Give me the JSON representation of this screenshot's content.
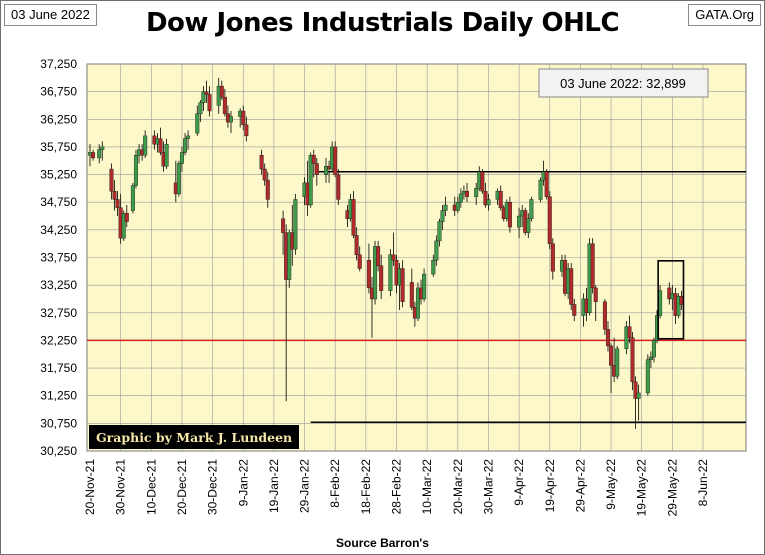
{
  "header": {
    "date_label": "03 June 2022",
    "title": "Dow Jones Industrials Daily OHLC",
    "source_site": "GATA.Org"
  },
  "footer": {
    "source": "Source Barron's"
  },
  "chart_data": {
    "type": "candlestick",
    "title": "Dow Jones Industrials Daily OHLC",
    "xlabel": "Source Barron's",
    "ylim": [
      30250,
      37250
    ],
    "y_ticks": [
      "37,250",
      "36,750",
      "36,250",
      "35,750",
      "35,250",
      "34,750",
      "34,250",
      "33,750",
      "33,250",
      "32,750",
      "32,250",
      "31,750",
      "31,250",
      "30,750",
      "30,250"
    ],
    "x_ticks": [
      "20-Nov-21",
      "30-Nov-21",
      "10-Dec-21",
      "20-Dec-21",
      "30-Dec-21",
      "9-Jan-22",
      "19-Jan-22",
      "29-Jan-22",
      "8-Feb-22",
      "18-Feb-22",
      "28-Feb-22",
      "10-Mar-22",
      "20-Mar-22",
      "30-Mar-22",
      "9-Apr-22",
      "19-Apr-22",
      "29-Apr-22",
      "9-May-22",
      "19-May-22",
      "29-May-22",
      "8-Jun-22"
    ],
    "x_range_days": [
      0,
      200
    ],
    "callout": "03 June 2022:  32,899",
    "credit": "Graphic by Mark J. Lundeen",
    "colors": {
      "up": "#3f9a4a",
      "down": "#b02a2a",
      "plot_bg": "#fcf8c9",
      "red_line": "#d81e1e"
    },
    "reference_lines": [
      {
        "value": 35300,
        "color": "#000000",
        "from_day": 74,
        "to_day": 200
      },
      {
        "value": 32250,
        "color": "#d81e1e",
        "from_day": 0,
        "to_day": 200
      },
      {
        "value": 30770,
        "color": "#000000",
        "from_day": 72,
        "to_day": 200
      }
    ],
    "highlight_box": {
      "day_from": 187,
      "day_to": 192,
      "low": 32280,
      "high": 33690
    },
    "candles": [
      [
        0,
        35600,
        35800,
        35400,
        35650
      ],
      [
        1,
        35650,
        35700,
        35500,
        35550
      ],
      [
        3,
        35550,
        35800,
        35450,
        35700
      ],
      [
        4,
        35700,
        35850,
        35500,
        35750
      ],
      [
        7,
        35350,
        35450,
        34800,
        34950
      ],
      [
        8,
        34950,
        35150,
        34600,
        34800
      ],
      [
        9,
        34800,
        34950,
        34500,
        34650
      ],
      [
        10,
        34650,
        34900,
        34000,
        34100
      ],
      [
        11,
        34100,
        34600,
        34050,
        34550
      ],
      [
        12,
        34550,
        34700,
        34300,
        34400
      ],
      [
        14,
        34600,
        35100,
        34550,
        35050
      ],
      [
        15,
        35050,
        35700,
        35000,
        35600
      ],
      [
        16,
        35600,
        35800,
        35450,
        35700
      ],
      [
        17,
        35700,
        35800,
        35500,
        35600
      ],
      [
        18,
        35600,
        36050,
        35550,
        35950
      ],
      [
        21,
        35950,
        36050,
        35700,
        35800
      ],
      [
        22,
        35800,
        36000,
        35650,
        35900
      ],
      [
        23,
        35900,
        36100,
        35600,
        35650
      ],
      [
        24,
        35650,
        35850,
        35300,
        35400
      ],
      [
        25,
        35400,
        35900,
        35350,
        35800
      ],
      [
        28,
        35100,
        35500,
        34750,
        34900
      ],
      [
        29,
        34900,
        35500,
        34850,
        35450
      ],
      [
        30,
        35450,
        35750,
        35300,
        35650
      ],
      [
        31,
        35650,
        36000,
        35600,
        35900
      ],
      [
        32,
        35900,
        36050,
        35700,
        35950
      ],
      [
        35,
        36000,
        36500,
        35950,
        36350
      ],
      [
        36,
        36350,
        36600,
        36200,
        36550
      ],
      [
        37,
        36550,
        36850,
        36400,
        36750
      ],
      [
        38,
        36750,
        36950,
        36550,
        36700
      ],
      [
        39,
        36700,
        36850,
        36300,
        36400
      ],
      [
        42,
        36500,
        37000,
        36350,
        36850
      ],
      [
        43,
        36850,
        36950,
        36600,
        36650
      ],
      [
        44,
        36650,
        36800,
        36300,
        36350
      ],
      [
        45,
        36350,
        36500,
        36100,
        36200
      ],
      [
        46,
        36200,
        36400,
        36000,
        36300
      ],
      [
        49,
        36300,
        36450,
        36100,
        36400
      ],
      [
        50,
        36400,
        36500,
        36050,
        36150
      ],
      [
        51,
        36150,
        36300,
        35850,
        35950
      ],
      [
        56,
        35600,
        35700,
        35250,
        35350
      ],
      [
        57,
        35350,
        35450,
        35050,
        35150
      ],
      [
        58,
        35150,
        35300,
        34650,
        34800
      ],
      [
        63,
        34450,
        34600,
        33800,
        34200
      ],
      [
        64,
        34200,
        34350,
        31150,
        33350
      ],
      [
        65,
        33350,
        34250,
        33200,
        34200
      ],
      [
        66,
        34200,
        34700,
        33600,
        33900
      ],
      [
        67,
        33900,
        34900,
        33800,
        34800
      ],
      [
        70,
        34850,
        35200,
        34700,
        35100
      ],
      [
        71,
        35100,
        35500,
        34500,
        34700
      ],
      [
        72,
        34700,
        35650,
        34650,
        35600
      ],
      [
        73,
        35600,
        35700,
        35200,
        35450
      ],
      [
        74,
        35450,
        35550,
        35050,
        35250
      ],
      [
        77,
        35250,
        35550,
        35100,
        35400
      ],
      [
        78,
        35400,
        35500,
        35100,
        35350
      ],
      [
        79,
        35350,
        35850,
        35300,
        35750
      ],
      [
        80,
        35750,
        35850,
        35200,
        35250
      ],
      [
        81,
        35250,
        35350,
        34700,
        34800
      ],
      [
        84,
        34600,
        34700,
        34300,
        34450
      ],
      [
        85,
        34450,
        34900,
        34400,
        34800
      ],
      [
        86,
        34800,
        34950,
        34100,
        34150
      ],
      [
        87,
        34150,
        34300,
        33700,
        33800
      ],
      [
        88,
        33800,
        33950,
        33500,
        33550
      ],
      [
        91,
        33700,
        34000,
        33100,
        33200
      ],
      [
        92,
        33200,
        33400,
        32300,
        33000
      ],
      [
        93,
        33000,
        34050,
        32900,
        33950
      ],
      [
        94,
        33950,
        34050,
        33500,
        33600
      ],
      [
        95,
        33600,
        33800,
        33000,
        33150
      ],
      [
        98,
        33150,
        33900,
        33050,
        33800
      ],
      [
        99,
        33800,
        34200,
        33600,
        33700
      ],
      [
        100,
        33700,
        33800,
        33100,
        33250
      ],
      [
        101,
        33250,
        33650,
        32800,
        33550
      ],
      [
        102,
        33550,
        33700,
        32850,
        32950
      ],
      [
        105,
        33300,
        33550,
        32800,
        32850
      ],
      [
        106,
        32850,
        32950,
        32500,
        32650
      ],
      [
        107,
        32650,
        33300,
        32600,
        33200
      ],
      [
        108,
        33200,
        33350,
        32900,
        33000
      ],
      [
        109,
        33000,
        33550,
        32950,
        33450
      ],
      [
        112,
        33450,
        33800,
        33400,
        33700
      ],
      [
        113,
        33700,
        34150,
        33600,
        34050
      ],
      [
        114,
        34050,
        34450,
        33950,
        34400
      ],
      [
        115,
        34400,
        34700,
        34250,
        34600
      ],
      [
        116,
        34600,
        34850,
        34500,
        34700
      ],
      [
        119,
        34700,
        34850,
        34500,
        34600
      ],
      [
        120,
        34600,
        34850,
        34550,
        34750
      ],
      [
        121,
        34750,
        35000,
        34650,
        34900
      ],
      [
        122,
        34900,
        35050,
        34800,
        34950
      ],
      [
        123,
        34950,
        35100,
        34750,
        34850
      ],
      [
        126,
        34850,
        35100,
        34700,
        35000
      ],
      [
        127,
        35000,
        35400,
        34950,
        35300
      ],
      [
        128,
        35300,
        35350,
        34900,
        34950
      ],
      [
        129,
        34950,
        35100,
        34650,
        34700
      ],
      [
        130,
        34700,
        34900,
        34600,
        34800
      ],
      [
        133,
        34800,
        35000,
        34700,
        34950
      ],
      [
        134,
        34950,
        35050,
        34600,
        34650
      ],
      [
        135,
        34650,
        34700,
        34400,
        34450
      ],
      [
        136,
        34450,
        34800,
        34400,
        34750
      ],
      [
        137,
        34750,
        34850,
        34200,
        34300
      ],
      [
        140,
        34300,
        34650,
        34100,
        34500
      ],
      [
        141,
        34500,
        34700,
        34300,
        34600
      ],
      [
        142,
        34600,
        34650,
        34150,
        34200
      ],
      [
        143,
        34200,
        34550,
        34100,
        34450
      ],
      [
        144,
        34450,
        34850,
        34400,
        34800
      ],
      [
        147,
        34800,
        35200,
        34750,
        35150
      ],
      [
        148,
        35150,
        35500,
        35050,
        35300
      ],
      [
        149,
        35300,
        35350,
        34800,
        34850
      ],
      [
        150,
        34850,
        34950,
        33900,
        34000
      ],
      [
        151,
        34000,
        34100,
        33350,
        33500
      ],
      [
        154,
        33500,
        33800,
        33400,
        33700
      ],
      [
        155,
        33700,
        33800,
        33050,
        33100
      ],
      [
        156,
        33100,
        33650,
        33000,
        33550
      ],
      [
        157,
        33550,
        33650,
        32800,
        32900
      ],
      [
        158,
        32900,
        33000,
        32600,
        32700
      ],
      [
        161,
        32700,
        33100,
        32500,
        33000
      ],
      [
        162,
        33000,
        33200,
        32600,
        32750
      ],
      [
        163,
        32750,
        34100,
        32700,
        34000
      ],
      [
        164,
        34000,
        34100,
        33100,
        33200
      ],
      [
        165,
        33200,
        33250,
        32600,
        32950
      ],
      [
        168,
        32950,
        33000,
        32350,
        32450
      ],
      [
        169,
        32450,
        32600,
        32050,
        32150
      ],
      [
        170,
        32150,
        32200,
        31300,
        31800
      ],
      [
        171,
        31800,
        32300,
        31500,
        31600
      ],
      [
        172,
        31600,
        32150,
        31550,
        32100
      ],
      [
        175,
        32100,
        32600,
        32000,
        32500
      ],
      [
        176,
        32500,
        32700,
        32200,
        32300
      ],
      [
        177,
        32300,
        32400,
        31350,
        31500
      ],
      [
        178,
        31500,
        31600,
        30650,
        31200
      ],
      [
        179,
        31200,
        31450,
        30800,
        31300
      ],
      [
        182,
        31300,
        32000,
        31250,
        31900
      ],
      [
        183,
        31900,
        32050,
        31750,
        31950
      ],
      [
        184,
        31950,
        32300,
        31850,
        32250
      ],
      [
        185,
        32250,
        32800,
        32200,
        32700
      ],
      [
        186,
        32700,
        33250,
        32650,
        33150
      ],
      [
        189,
        33200,
        33300,
        32900,
        33000
      ],
      [
        190,
        33000,
        33250,
        32800,
        33100
      ],
      [
        191,
        33100,
        33200,
        32550,
        32700
      ],
      [
        192,
        32700,
        33100,
        32650,
        33050
      ],
      [
        193,
        33050,
        33150,
        32800,
        32899
      ]
    ]
  }
}
